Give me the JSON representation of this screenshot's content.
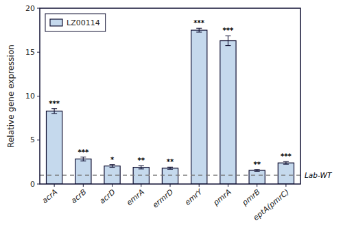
{
  "chart_data": {
    "type": "bar",
    "categories": [
      "acrA",
      "acrB",
      "acrD",
      "emrA",
      "ermrD",
      "emrY",
      "pmrA",
      "pmrB",
      "eptA(pmrC)"
    ],
    "series": [
      {
        "name": "LZ00114",
        "color": "#c5d9ed",
        "values": [
          8.3,
          2.85,
          2.05,
          1.9,
          1.8,
          17.5,
          16.3,
          1.55,
          2.4
        ],
        "errors": [
          0.28,
          0.22,
          0.15,
          0.18,
          0.12,
          0.22,
          0.55,
          0.1,
          0.15
        ],
        "significance": [
          "***",
          "***",
          "*",
          "**",
          "**",
          "***",
          "***",
          "**",
          "***"
        ]
      }
    ],
    "reference_lines": [
      {
        "y": 1.0,
        "label": "Lab-WT",
        "color": "#777777"
      }
    ],
    "ylabel": "Relative gene expression",
    "ylim": [
      0,
      20
    ],
    "yticks": [
      0,
      5,
      10,
      15,
      20
    ],
    "legend": "upper left",
    "grid": false
  }
}
